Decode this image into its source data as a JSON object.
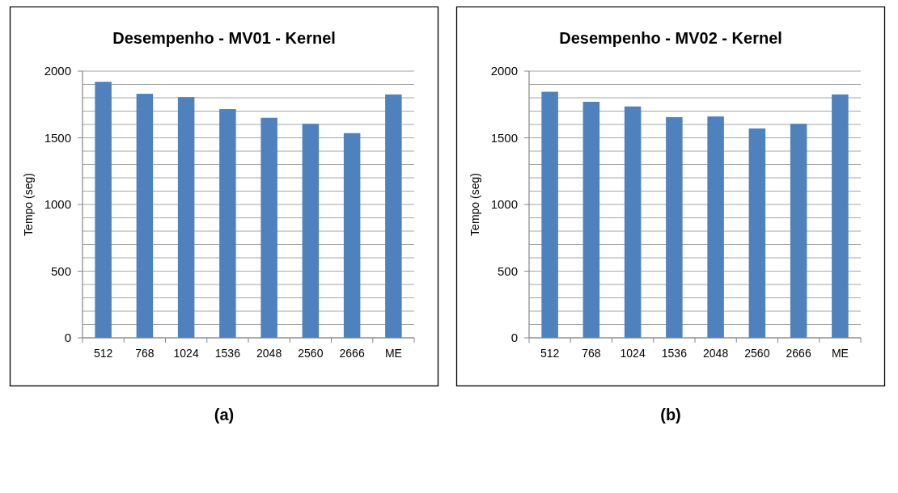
{
  "chart_data": [
    {
      "type": "bar",
      "title": "Desempenho - MV01 - Kernel",
      "ylabel": "Tempo (seg)",
      "categories": [
        "512",
        "768",
        "1024",
        "1536",
        "2048",
        "2560",
        "2666",
        "ME"
      ],
      "values": [
        1920,
        1830,
        1805,
        1715,
        1650,
        1605,
        1535,
        1825
      ],
      "color": "#4f81bd",
      "ylim": [
        0,
        2000
      ],
      "yticks": [
        0,
        {
          "value": 100,
          "label": null
        },
        {
          "value": 200,
          "label": null
        },
        {
          "value": 300,
          "label": null
        },
        {
          "value": 400,
          "label": null
        },
        500,
        {
          "value": 600,
          "label": null
        },
        {
          "value": 700,
          "label": null
        },
        {
          "value": 800,
          "label": null
        },
        {
          "value": 900,
          "label": null
        },
        1000,
        {
          "value": 1100,
          "label": null
        },
        {
          "value": 1200,
          "label": null
        },
        {
          "value": 1300,
          "label": null
        },
        {
          "value": 1400,
          "label": null
        },
        1500,
        {
          "value": 1600,
          "label": null
        },
        {
          "value": 1700,
          "label": null
        },
        {
          "value": 1800,
          "label": null
        },
        {
          "value": 1900,
          "label": null
        },
        2000
      ],
      "grid": "y",
      "annotations": [
        "(a)"
      ]
    },
    {
      "type": "bar",
      "title": "Desempenho - MV02 - Kernel",
      "ylabel": "Tempo (seg)",
      "categories": [
        "512",
        "768",
        "1024",
        "1536",
        "2048",
        "2560",
        "2666",
        "ME"
      ],
      "values": [
        1845,
        1770,
        1735,
        1655,
        1660,
        1570,
        1605,
        1825
      ],
      "color": "#4f81bd",
      "ylim": [
        0,
        2000
      ],
      "yticks": [
        0,
        {
          "value": 100,
          "label": null
        },
        {
          "value": 200,
          "label": null
        },
        {
          "value": 300,
          "label": null
        },
        {
          "value": 400,
          "label": null
        },
        500,
        {
          "value": 600,
          "label": null
        },
        {
          "value": 700,
          "label": null
        },
        {
          "value": 800,
          "label": null
        },
        {
          "value": 900,
          "label": null
        },
        1000,
        {
          "value": 1100,
          "label": null
        },
        {
          "value": 1200,
          "label": null
        },
        {
          "value": 1300,
          "label": null
        },
        {
          "value": 1400,
          "label": null
        },
        1500,
        {
          "value": 1600,
          "label": null
        },
        {
          "value": 1700,
          "label": null
        },
        {
          "value": 1800,
          "label": null
        },
        {
          "value": 1900,
          "label": null
        },
        2000
      ],
      "grid": "y",
      "annotations": [
        "(b)"
      ]
    }
  ]
}
